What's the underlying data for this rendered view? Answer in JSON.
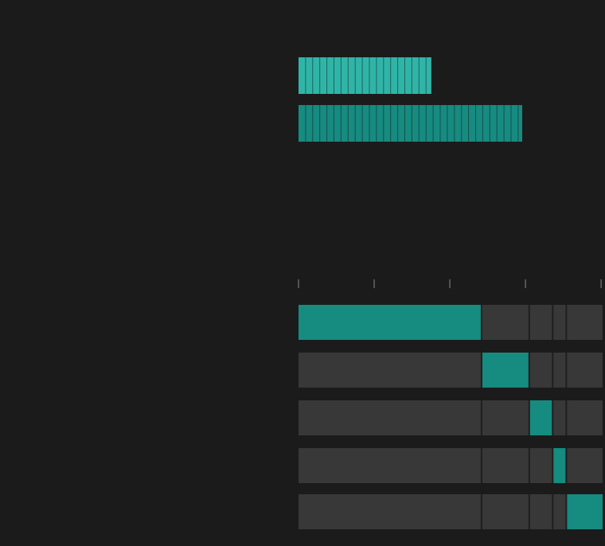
{
  "colors": {
    "background": "#1b1b1b",
    "track": "#383838",
    "track_divider": "#1f1f1f",
    "highlight": "#168b80",
    "summary_light": "#2fb5a8",
    "summary_dark": "#168b80",
    "segment_line": "#1b1b1b",
    "tick": "#8a8a8a"
  },
  "chart_data": [
    {
      "type": "bar",
      "orientation": "horizontal",
      "series": [
        {
          "name": "",
          "value": 19,
          "color": "summary_light"
        },
        {
          "name": "",
          "value": 32,
          "color": "summary_dark"
        }
      ],
      "xlim": [
        0,
        43.5
      ],
      "title": "",
      "xlabel": "",
      "ylabel": ""
    },
    {
      "type": "bar",
      "orientation": "horizontal",
      "stacked": true,
      "segments": [
        {
          "value": 24.2
        },
        {
          "value": 6.3
        },
        {
          "value": 3.1
        },
        {
          "value": 1.8
        },
        {
          "value": 4.8
        }
      ],
      "rows": [
        {
          "highlighted_segment": 0
        },
        {
          "highlighted_segment": 1
        },
        {
          "highlighted_segment": 2
        },
        {
          "highlighted_segment": 3
        },
        {
          "highlighted_segment": 4
        }
      ],
      "xlim": [
        0,
        40.2
      ],
      "xticks": [
        0,
        10,
        20,
        30,
        40
      ],
      "tick_labels_shown": false,
      "grid": false,
      "title": "",
      "xlabel": "",
      "ylabel": ""
    }
  ]
}
